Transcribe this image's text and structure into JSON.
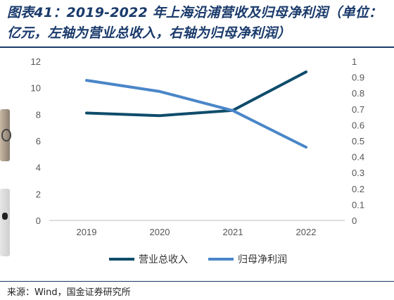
{
  "page": {
    "title": "图表41：2019-2022 年上海沿浦营收及归母净利润（单位：亿元，左轴为营业总收入，右轴为归母净利润）",
    "source": "来源：Wind，国金证券研究所"
  },
  "chart_data": {
    "type": "line",
    "title": "图表41：2019-2022 年上海沿浦营收及归母净利润（单位：亿元，左轴为营业总收入，右轴为归母净利润）",
    "categories": [
      "2019",
      "2020",
      "2021",
      "2022"
    ],
    "y_left": {
      "ylim": [
        0,
        12
      ],
      "ticks": [
        "0",
        "2",
        "4",
        "6",
        "8",
        "10",
        "12"
      ]
    },
    "y_right": {
      "ylim": [
        0,
        1
      ],
      "ticks": [
        "0",
        "0.1",
        "0.2",
        "0.3",
        "0.4",
        "0.5",
        "0.6",
        "0.7",
        "0.8",
        "0.9",
        "1"
      ]
    },
    "series": [
      {
        "name": "营业总收入",
        "axis": "left",
        "color": "#0f4c6b",
        "values": [
          8.1,
          7.9,
          8.3,
          11.2
        ]
      },
      {
        "name": "归母净利润",
        "axis": "right",
        "color": "#4a86c8",
        "values": [
          0.88,
          0.81,
          0.69,
          0.46
        ]
      }
    ],
    "grid": false,
    "legend": "bottom-center"
  }
}
